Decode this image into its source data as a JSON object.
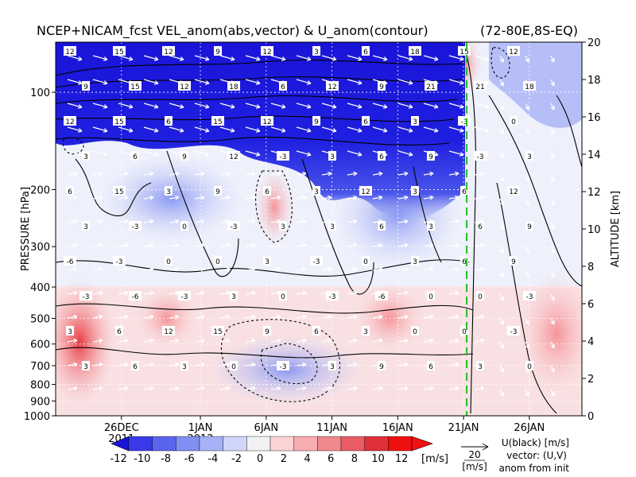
{
  "chart_data": {
    "type": "heatmap",
    "title": "NCEP+NICAM_fcst VEL_anom(abs,vector) & U_anom(contour)",
    "region": "(72-80E,8S-EQ)",
    "ylabel_left": "PRESSURE [hPa]",
    "ylabel_right": "ALTITUDE [km]",
    "y_scale": "log",
    "ylim_hpa": [
      1000,
      70
    ],
    "x_ticks": [
      "26DEC",
      "1JAN",
      "6JAN",
      "11JAN",
      "16JAN",
      "21JAN",
      "26JAN"
    ],
    "x_year_labels": [
      {
        "label": "2011",
        "under": "26DEC"
      },
      {
        "label": "2012",
        "under": "1JAN"
      }
    ],
    "xlim": [
      "2011-12-21",
      "2012-01-30"
    ],
    "forecast_init": "2012-01-21",
    "pressure_ticks": [
      100,
      200,
      300,
      400,
      500,
      600,
      700,
      800,
      900,
      1000
    ],
    "altitude_ticks": [
      0,
      2,
      4,
      6,
      8,
      10,
      12,
      14,
      16,
      18,
      20
    ],
    "colorbar": {
      "levels": [
        -12,
        -10,
        -8,
        -6,
        -4,
        -2,
        0,
        2,
        4,
        6,
        8,
        10,
        12
      ],
      "tick_labels": [
        "-12",
        "-10",
        "-8",
        "-6",
        "-4",
        "-2",
        "0",
        "2",
        "4",
        "6",
        "8",
        "10",
        "12"
      ],
      "units": "[m/s]",
      "colors": [
        "#1a14d8",
        "#3a3ae8",
        "#5a64ee",
        "#7f8ff2",
        "#a6b2f6",
        "#cfd6fa",
        "#f1f1f4",
        "#fbd4d6",
        "#f7adb1",
        "#f0888d",
        "#e95c63",
        "#e03038",
        "#f01010"
      ]
    },
    "reference_vector": {
      "value": "20",
      "units": "[m/s]"
    },
    "legend_text": [
      "U(black) [m/s]",
      "vector: (U,V)",
      "anom from init"
    ],
    "grid": true,
    "contour_labels": [
      "12",
      "15",
      "12",
      "9",
      "12",
      "3",
      "6",
      "18",
      "15",
      "12",
      "9",
      "15",
      "12",
      "18",
      "6",
      "12",
      "9",
      "21",
      "21",
      "18",
      "12",
      "15",
      "6",
      "15",
      "12",
      "9",
      "6",
      "3",
      "-3",
      "0",
      "3",
      "6",
      "9",
      "12",
      "-3",
      "3",
      "6",
      "9",
      "-3",
      "3",
      "6",
      "15",
      "3",
      "9",
      "6",
      "3",
      "12",
      "3",
      "6",
      "12",
      "3",
      "-3",
      "0",
      "-3",
      "3",
      "3",
      "6",
      "3",
      "6",
      "9",
      "-6",
      "-3",
      "0",
      "0",
      "3",
      "-3",
      "0",
      "3",
      "6",
      "9",
      "-3",
      "-6",
      "-3",
      "3",
      "0",
      "-3",
      "-6",
      "0",
      "0",
      "-3",
      "3",
      "6",
      "12",
      "15",
      "9",
      "6",
      "3",
      "0",
      "0",
      "-3",
      "3",
      "6",
      "3",
      "0",
      "-3",
      "3",
      "9",
      "6",
      "3",
      "0"
    ]
  }
}
